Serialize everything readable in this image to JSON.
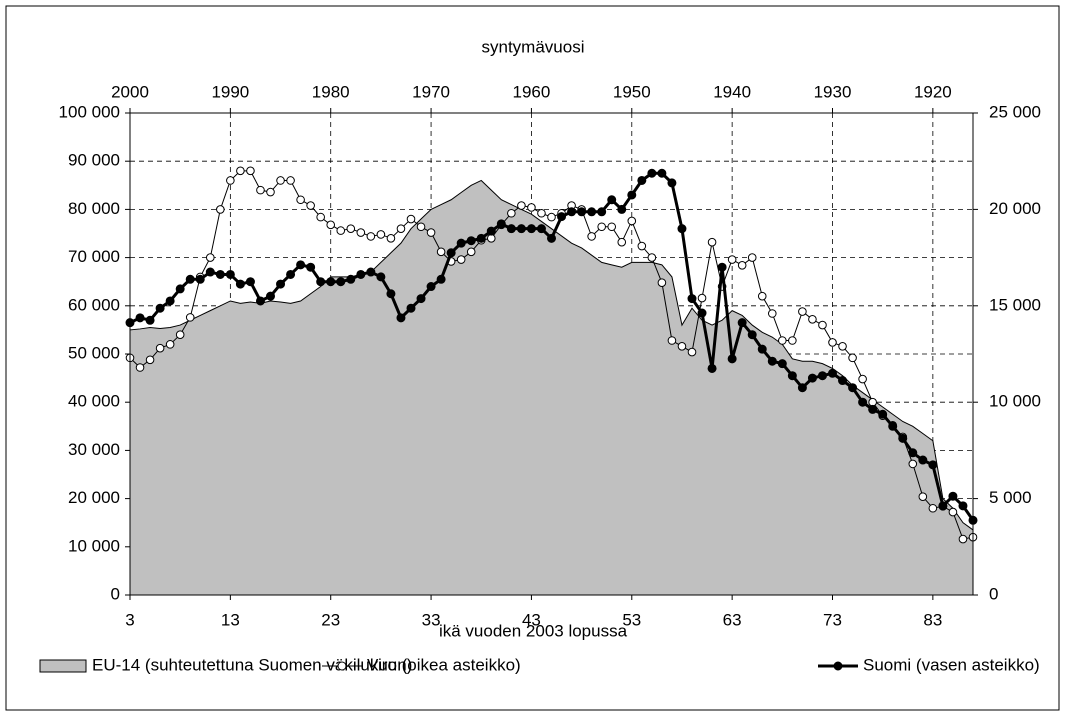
{
  "chart_data": {
    "type": "line",
    "xlabel": "ikä vuoden 2003 lopussa",
    "x2label": "syntymävuosi",
    "x": [
      3,
      4,
      5,
      6,
      7,
      8,
      9,
      10,
      11,
      12,
      13,
      14,
      15,
      16,
      17,
      18,
      19,
      20,
      21,
      22,
      23,
      24,
      25,
      26,
      27,
      28,
      29,
      30,
      31,
      32,
      33,
      34,
      35,
      36,
      37,
      38,
      39,
      40,
      41,
      42,
      43,
      44,
      45,
      46,
      47,
      48,
      49,
      50,
      51,
      52,
      53,
      54,
      55,
      56,
      57,
      58,
      59,
      60,
      61,
      62,
      63,
      64,
      65,
      66,
      67,
      68,
      69,
      70,
      71,
      72,
      73,
      74,
      75,
      76,
      77,
      78,
      79,
      80,
      81,
      82,
      83,
      84,
      85,
      86,
      87
    ],
    "xlim": [
      3,
      87
    ],
    "xticks": [
      3,
      13,
      23,
      33,
      43,
      53,
      63,
      73,
      83
    ],
    "x2lim": [
      2000,
      1916
    ],
    "x2ticks": [
      2000,
      1990,
      1980,
      1970,
      1960,
      1950,
      1940,
      1930,
      1920
    ],
    "ylim": [
      0,
      100000
    ],
    "yticks": [
      0,
      {
        "value": 10000,
        "label": "10 000"
      },
      {
        "value": 20000,
        "label": "20 000"
      },
      {
        "value": 30000,
        "label": "30 000"
      },
      {
        "value": 40000,
        "label": "40 000"
      },
      {
        "value": 50000,
        "label": "50 000"
      },
      {
        "value": 60000,
        "label": "60 000"
      },
      {
        "value": 70000,
        "label": "70 000"
      },
      {
        "value": 80000,
        "label": "80 000"
      },
      {
        "value": 90000,
        "label": "90 000"
      },
      {
        "value": 100000,
        "label": "100 000"
      }
    ],
    "y2lim": [
      0,
      25000
    ],
    "y2ticks": [
      0,
      {
        "value": 5000,
        "label": "5 000"
      },
      {
        "value": 10000,
        "label": "10 000"
      },
      {
        "value": 15000,
        "label": "15 000"
      },
      {
        "value": 20000,
        "label": "20 000"
      },
      {
        "value": 25000,
        "label": "25 000"
      }
    ],
    "grid": true,
    "legend": "bottom",
    "series": [
      {
        "name": "EU-14 (suhteutettuna Suomen väkilukuun)",
        "type": "area",
        "color": "#c0c0c0",
        "values": [
          55000,
          55200,
          55500,
          55300,
          55500,
          56000,
          57000,
          58000,
          59000,
          60000,
          61000,
          60500,
          60800,
          60500,
          61000,
          60800,
          60500,
          61000,
          62500,
          64000,
          66000,
          66000,
          66000,
          66500,
          67000,
          69000,
          71000,
          73000,
          76000,
          78000,
          80000,
          81000,
          82000,
          83500,
          85000,
          86000,
          84000,
          82000,
          81000,
          80000,
          79000,
          77500,
          76000,
          74500,
          73000,
          72000,
          70500,
          69000,
          68500,
          68000,
          69000,
          69000,
          69000,
          68500,
          66000,
          56000,
          59500,
          57000,
          56000,
          57000,
          59000,
          58000,
          56000,
          54500,
          53500,
          52000,
          49000,
          48500,
          48500,
          48000,
          47000,
          45500,
          43500,
          42000,
          40500,
          39000,
          37500,
          36000,
          35000,
          33500,
          32000,
          20000,
          18000,
          15000,
          13500
        ]
      },
      {
        "name": "Viro (oikea asteikko)",
        "type": "line",
        "axis": "y2",
        "color": "#000000",
        "marker": "open",
        "values": [
          12300,
          11800,
          12200,
          12800,
          13000,
          13500,
          14400,
          16500,
          17500,
          20000,
          21500,
          22000,
          22000,
          21000,
          20900,
          21500,
          21500,
          20500,
          20200,
          19600,
          19200,
          18900,
          19000,
          18800,
          18600,
          18700,
          18500,
          19000,
          19500,
          19100,
          18800,
          17800,
          17300,
          17400,
          17800,
          18400,
          18500,
          19200,
          19800,
          20200,
          20100,
          19800,
          19600,
          19800,
          20200,
          20000,
          18600,
          19100,
          19100,
          18300,
          19400,
          18100,
          17500,
          16200,
          13200,
          12900,
          12600,
          15400,
          18300,
          16000,
          17400,
          17100,
          17500,
          15500,
          14600,
          13200,
          13200,
          14700,
          14300,
          14000,
          13100,
          12900,
          12300,
          11200,
          10000,
          9300,
          8800,
          8200,
          6800,
          5100,
          4500,
          4600,
          4300,
          2900,
          3000
        ]
      },
      {
        "name": "Suomi (vasen asteikko)",
        "type": "line",
        "color": "#000000",
        "marker": "filled",
        "values": [
          56500,
          57500,
          57000,
          59500,
          61000,
          63500,
          65500,
          65500,
          67000,
          66500,
          66500,
          64500,
          65000,
          61000,
          62000,
          64500,
          66500,
          68500,
          68000,
          65000,
          65000,
          65000,
          65500,
          66500,
          67000,
          66000,
          62500,
          57500,
          59500,
          61500,
          64000,
          65500,
          71000,
          73000,
          73500,
          74000,
          75500,
          77000,
          76000,
          76000,
          76000,
          76000,
          74000,
          78500,
          79500,
          79500,
          79500,
          79500,
          82000,
          80000,
          83000,
          86000,
          87500,
          87500,
          85500,
          76000,
          61500,
          58500,
          47000,
          68000,
          49000,
          56500,
          54000,
          51000,
          48500,
          48000,
          45500,
          43000,
          45000,
          45500,
          46000,
          44500,
          43000,
          40000,
          38500,
          37500,
          35000,
          32500,
          29500,
          28000,
          27000,
          18500,
          20500,
          18500,
          15500
        ]
      }
    ]
  }
}
